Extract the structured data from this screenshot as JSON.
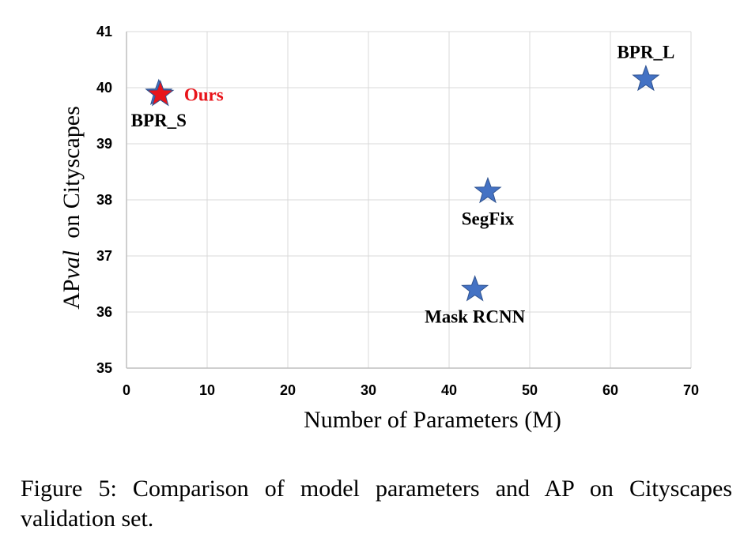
{
  "chart_data": {
    "type": "scatter",
    "xlabel": "Number of Parameters (M)",
    "ylabel_prefix": "AP",
    "ylabel_italic": "val",
    "ylabel_suffix": "  on Cityscapes",
    "xlim": [
      0,
      70
    ],
    "ylim": [
      35,
      41
    ],
    "xticks": [
      0,
      10,
      20,
      30,
      40,
      50,
      60,
      70
    ],
    "yticks": [
      35,
      36,
      37,
      38,
      39,
      40,
      41
    ],
    "grid": true,
    "marker": "star",
    "colors": {
      "default": "#4472c4",
      "highlight": "#e8141a",
      "grid": "#d9d9d9",
      "axis": "#bfbfbf"
    },
    "points": [
      {
        "label": "Mask RCNN",
        "x": 43.2,
        "y": 36.4,
        "label_pos": "below"
      },
      {
        "label": "SegFix",
        "x": 44.8,
        "y": 38.15,
        "label_pos": "below"
      },
      {
        "label": "BPR_S",
        "x": 4.0,
        "y": 39.9,
        "label_pos": "below"
      },
      {
        "label": "BPR_L",
        "x": 64.4,
        "y": 40.15,
        "label_pos": "above"
      },
      {
        "label": "Ours",
        "x": 4.2,
        "y": 39.88,
        "label_pos": "right",
        "highlight": true
      }
    ]
  },
  "caption": "Figure 5: Comparison of model parameters and AP on Cityscapes validation set."
}
